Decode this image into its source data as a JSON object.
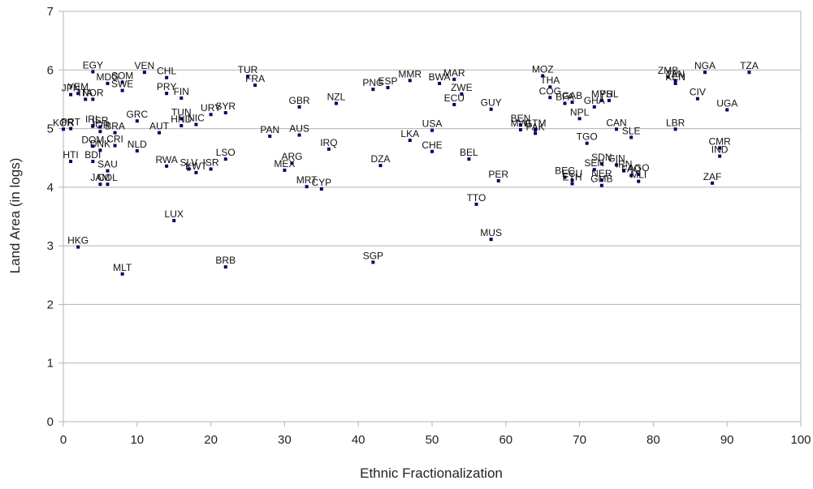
{
  "chart_data": {
    "type": "scatter",
    "title": "",
    "xlabel": "Ethnic Fractionalization",
    "ylabel": "Land Area (in logs)",
    "xlim": [
      0,
      100
    ],
    "ylim": [
      0,
      7
    ],
    "xticks": [
      0,
      10,
      20,
      30,
      40,
      50,
      60,
      70,
      80,
      90,
      100
    ],
    "yticks": [
      0,
      1,
      2,
      3,
      4,
      5,
      6,
      7
    ],
    "grid": "horizontal",
    "legend": "none",
    "marker_color": "#000066",
    "points": [
      {
        "label": "EGY",
        "x": 4,
        "y": 5.97
      },
      {
        "label": "VEN",
        "x": 11,
        "y": 5.96
      },
      {
        "label": "CHL",
        "x": 14,
        "y": 5.87
      },
      {
        "label": "SOM",
        "x": 8,
        "y": 5.79
      },
      {
        "label": "MDG",
        "x": 6,
        "y": 5.77
      },
      {
        "label": "SWE",
        "x": 8,
        "y": 5.65
      },
      {
        "label": "JPN",
        "x": 1,
        "y": 5.58
      },
      {
        "label": "YEM",
        "x": 2,
        "y": 5.6
      },
      {
        "label": "ITA",
        "x": 3,
        "y": 5.5
      },
      {
        "label": "NOR",
        "x": 4,
        "y": 5.5
      },
      {
        "label": "PRY",
        "x": 14,
        "y": 5.6
      },
      {
        "label": "FIN",
        "x": 16,
        "y": 5.52
      },
      {
        "label": "TUR",
        "x": 25,
        "y": 5.89
      },
      {
        "label": "FRA",
        "x": 26,
        "y": 5.74
      },
      {
        "label": "GBR",
        "x": 32,
        "y": 5.37
      },
      {
        "label": "NZL",
        "x": 37,
        "y": 5.43
      },
      {
        "label": "PNG",
        "x": 42,
        "y": 5.67
      },
      {
        "label": "ESP",
        "x": 44,
        "y": 5.7
      },
      {
        "label": "MMR",
        "x": 47,
        "y": 5.82
      },
      {
        "label": "BWA",
        "x": 51,
        "y": 5.77
      },
      {
        "label": "MAR",
        "x": 53,
        "y": 5.84
      },
      {
        "label": "ZWE",
        "x": 54,
        "y": 5.59
      },
      {
        "label": "ECU",
        "x": 53,
        "y": 5.41
      },
      {
        "label": "GUY",
        "x": 58,
        "y": 5.33
      },
      {
        "label": "MOZ",
        "x": 65,
        "y": 5.9
      },
      {
        "label": "THA",
        "x": 66,
        "y": 5.71
      },
      {
        "label": "COG",
        "x": 66,
        "y": 5.53
      },
      {
        "label": "BFA",
        "x": 68,
        "y": 5.43
      },
      {
        "label": "GAB",
        "x": 69,
        "y": 5.45
      },
      {
        "label": "GHA",
        "x": 72,
        "y": 5.37
      },
      {
        "label": "MYS",
        "x": 73,
        "y": 5.48
      },
      {
        "label": "PHL",
        "x": 74,
        "y": 5.48
      },
      {
        "label": "NPL",
        "x": 70,
        "y": 5.17
      },
      {
        "label": "ZMB",
        "x": 82,
        "y": 5.88
      },
      {
        "label": "KEN",
        "x": 83,
        "y": 5.77
      },
      {
        "label": "TAN",
        "x": 83,
        "y": 5.82
      },
      {
        "label": "NGA",
        "x": 87,
        "y": 5.96
      },
      {
        "label": "TZA",
        "x": 93,
        "y": 5.96
      },
      {
        "label": "CIV",
        "x": 86,
        "y": 5.51
      },
      {
        "label": "UGA",
        "x": 90,
        "y": 5.32
      },
      {
        "label": "LBR",
        "x": 83,
        "y": 4.99
      },
      {
        "label": "CAN",
        "x": 75,
        "y": 4.99
      },
      {
        "label": "SLE",
        "x": 77,
        "y": 4.85
      },
      {
        "label": "CMR",
        "x": 89,
        "y": 4.67
      },
      {
        "label": "IND",
        "x": 89,
        "y": 4.53
      },
      {
        "label": "ZAF",
        "x": 88,
        "y": 4.07
      },
      {
        "label": "KOR",
        "x": 0,
        "y": 4.99
      },
      {
        "label": "PRT",
        "x": 1,
        "y": 5.0
      },
      {
        "label": "IRL",
        "x": 4,
        "y": 5.05
      },
      {
        "label": "JOR",
        "x": 5,
        "y": 4.95
      },
      {
        "label": "ISR",
        "x": 5,
        "y": 5.03
      },
      {
        "label": "BRA",
        "x": 7,
        "y": 4.93
      },
      {
        "label": "GRC",
        "x": 10,
        "y": 5.13
      },
      {
        "label": "AUT",
        "x": 13,
        "y": 4.93
      },
      {
        "label": "TUN",
        "x": 16,
        "y": 5.17
      },
      {
        "label": "HND",
        "x": 16,
        "y": 5.05
      },
      {
        "label": "NIC",
        "x": 18,
        "y": 5.07
      },
      {
        "label": "URY",
        "x": 20,
        "y": 5.24
      },
      {
        "label": "SYR",
        "x": 22,
        "y": 5.27
      },
      {
        "label": "DOM",
        "x": 4,
        "y": 4.7
      },
      {
        "label": "CRI",
        "x": 7,
        "y": 4.71
      },
      {
        "label": "DNK",
        "x": 5,
        "y": 4.63
      },
      {
        "label": "NLD",
        "x": 10,
        "y": 4.62
      },
      {
        "label": "HTI",
        "x": 1,
        "y": 4.44
      },
      {
        "label": "BDI",
        "x": 4,
        "y": 4.44
      },
      {
        "label": "SAU",
        "x": 6,
        "y": 4.28
      },
      {
        "label": "JAM",
        "x": 5,
        "y": 4.05
      },
      {
        "label": "COL",
        "x": 6,
        "y": 4.05
      },
      {
        "label": "RWA",
        "x": 14,
        "y": 4.36
      },
      {
        "label": "SLV",
        "x": 17,
        "y": 4.31
      },
      {
        "label": "KWT",
        "x": 18,
        "y": 4.25
      },
      {
        "label": "ISR",
        "x": 20,
        "y": 4.31
      },
      {
        "label": "LSO",
        "x": 22,
        "y": 4.48
      },
      {
        "label": "PAN",
        "x": 28,
        "y": 4.87
      },
      {
        "label": "AUS",
        "x": 32,
        "y": 4.89
      },
      {
        "label": "ARG",
        "x": 31,
        "y": 4.41
      },
      {
        "label": "MEX",
        "x": 30,
        "y": 4.29
      },
      {
        "label": "IRQ",
        "x": 36,
        "y": 4.65
      },
      {
        "label": "MRT",
        "x": 33,
        "y": 4.01
      },
      {
        "label": "CYP",
        "x": 35,
        "y": 3.97
      },
      {
        "label": "DZA",
        "x": 43,
        "y": 4.37
      },
      {
        "label": "LKA",
        "x": 47,
        "y": 4.8
      },
      {
        "label": "USA",
        "x": 50,
        "y": 4.97
      },
      {
        "label": "CHE",
        "x": 50,
        "y": 4.61
      },
      {
        "label": "BEL",
        "x": 55,
        "y": 4.48
      },
      {
        "label": "BEN",
        "x": 62,
        "y": 5.06
      },
      {
        "label": "MWI",
        "x": 62,
        "y": 4.98
      },
      {
        "label": "GTM",
        "x": 64,
        "y": 4.98
      },
      {
        "label": "PAK",
        "x": 64,
        "y": 4.92
      },
      {
        "label": "TGO",
        "x": 71,
        "y": 4.75
      },
      {
        "label": "SDN",
        "x": 73,
        "y": 4.4
      },
      {
        "label": "SEN",
        "x": 72,
        "y": 4.3
      },
      {
        "label": "GIN",
        "x": 75,
        "y": 4.38
      },
      {
        "label": "IRN",
        "x": 76,
        "y": 4.28
      },
      {
        "label": "AGO",
        "x": 78,
        "y": 4.22
      },
      {
        "label": "FAO",
        "x": 77,
        "y": 4.2
      },
      {
        "label": "BEC",
        "x": 68,
        "y": 4.17
      },
      {
        "label": "ECU",
        "x": 69,
        "y": 4.12
      },
      {
        "label": "ETH",
        "x": 69,
        "y": 4.06
      },
      {
        "label": "NER",
        "x": 73,
        "y": 4.12
      },
      {
        "label": "GMB",
        "x": 73,
        "y": 4.03
      },
      {
        "label": "MLI",
        "x": 78,
        "y": 4.1
      },
      {
        "label": "PER",
        "x": 59,
        "y": 4.11
      },
      {
        "label": "TTO",
        "x": 56,
        "y": 3.71
      },
      {
        "label": "MUS",
        "x": 58,
        "y": 3.11
      },
      {
        "label": "LUX",
        "x": 15,
        "y": 3.43
      },
      {
        "label": "HKG",
        "x": 2,
        "y": 2.98
      },
      {
        "label": "MLT",
        "x": 8,
        "y": 2.52
      },
      {
        "label": "BRB",
        "x": 22,
        "y": 2.64
      },
      {
        "label": "SGP",
        "x": 42,
        "y": 2.72
      }
    ]
  }
}
